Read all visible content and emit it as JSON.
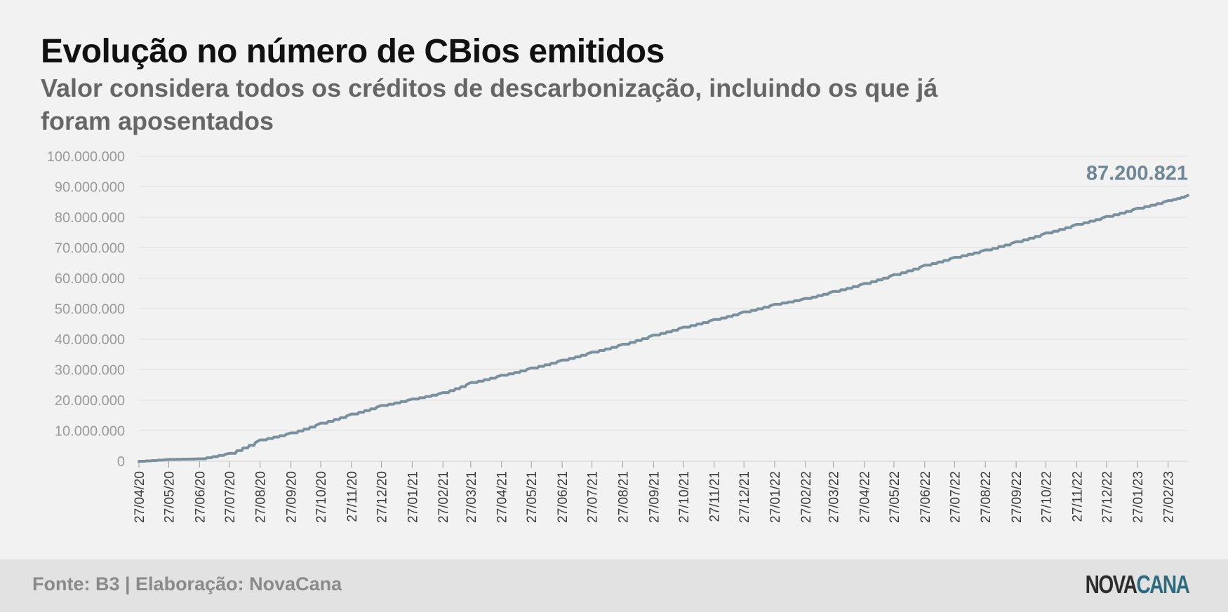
{
  "header": {
    "title": "Evolução no número de CBios emitidos",
    "subtitle": "Valor considera todos os créditos de descarbonização, incluindo os que já foram aposentados"
  },
  "footer": {
    "source": "Fonte: B3 | Elaboração: NovaCana",
    "logo_part1": "NOVA",
    "logo_part2": "CANA"
  },
  "colors": {
    "line": "#7a909d",
    "end_label": "#6f8796",
    "grid": "#e0e0e0",
    "axis_text": "#9a9a9a",
    "x_tick_text": "#3a3a3a",
    "logo_nova": "#2d2d2d",
    "logo_cana": "#2e6b7c"
  },
  "chart_data": {
    "type": "line",
    "title": "Evolução no número de CBios emitidos",
    "subtitle": "Valor considera todos os créditos de descarbonização, incluindo os que já foram aposentados",
    "xlabel": "",
    "ylabel": "",
    "ylim": [
      0,
      100000000
    ],
    "y_ticks": [
      0,
      10000000,
      20000000,
      30000000,
      40000000,
      50000000,
      60000000,
      70000000,
      80000000,
      90000000,
      100000000
    ],
    "y_tick_labels": [
      "0",
      "10.000.000",
      "20.000.000",
      "30.000.000",
      "40.000.000",
      "50.000.000",
      "60.000.000",
      "70.000.000",
      "80.000.000",
      "90.000.000",
      "100.000.000"
    ],
    "x_tick_labels": [
      "27/04/20",
      "27/05/20",
      "27/06/20",
      "27/07/20",
      "27/08/20",
      "27/09/20",
      "27/10/20",
      "27/11/20",
      "27/12/20",
      "27/01/21",
      "27/02/21",
      "27/03/21",
      "27/04/21",
      "27/05/21",
      "27/06/21",
      "27/07/21",
      "27/08/21",
      "27/09/21",
      "27/10/21",
      "27/11/21",
      "27/12/21",
      "27/01/22",
      "27/02/22",
      "27/03/22",
      "27/04/22",
      "27/05/22",
      "27/06/22",
      "27/07/22",
      "27/08/22",
      "27/09/22",
      "27/10/22",
      "27/11/22",
      "27/12/22",
      "27/01/23",
      "27/02/23"
    ],
    "grid": true,
    "legend": "none",
    "end_label": "87.200.821",
    "series": [
      {
        "x": [
          "27/04/20",
          "27/05/20",
          "27/06/20",
          "27/07/20",
          "27/08/20",
          "27/09/20",
          "27/10/20",
          "27/11/20",
          "27/12/20",
          "27/01/21",
          "27/02/21",
          "27/03/21",
          "27/04/21",
          "27/05/21",
          "27/06/21",
          "27/07/21",
          "27/08/21",
          "27/09/21",
          "27/10/21",
          "27/11/21",
          "27/12/21",
          "27/01/22",
          "27/02/22",
          "27/03/22",
          "27/04/22",
          "27/05/22",
          "27/06/22",
          "27/07/22",
          "27/08/22",
          "27/09/22",
          "27/10/22",
          "27/11/22",
          "27/12/22",
          "27/01/23",
          "27/02/23",
          "19/03/23"
        ],
        "values": [
          0,
          600000,
          800000,
          2600000,
          7000000,
          9300000,
          12500000,
          15500000,
          18300000,
          20400000,
          22500000,
          25800000,
          28200000,
          30600000,
          33200000,
          35800000,
          38400000,
          41400000,
          44000000,
          46500000,
          49000000,
          51500000,
          53400000,
          55700000,
          58300000,
          61200000,
          64300000,
          66900000,
          69300000,
          72000000,
          74900000,
          77700000,
          80300000,
          83000000,
          85500000,
          87200821
        ]
      }
    ]
  }
}
